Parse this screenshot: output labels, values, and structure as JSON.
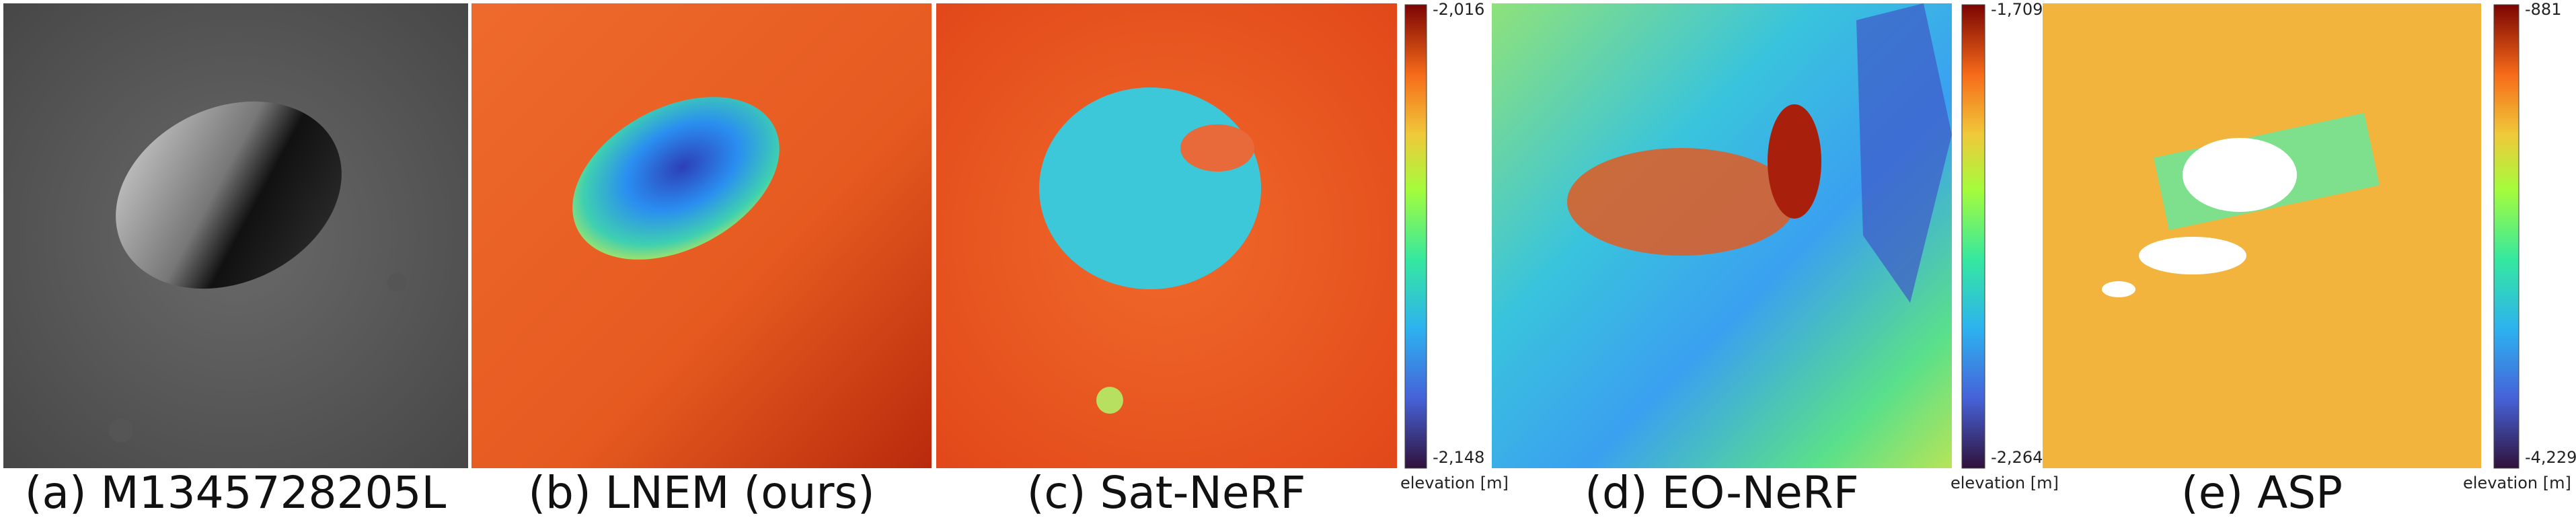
{
  "panels": [
    {
      "caption": "(a) M1345728205L"
    },
    {
      "caption": "(b) LNEM (ours)"
    },
    {
      "caption": "(c) Sat-NeRF",
      "colorbar": {
        "max": "-2,016",
        "min": "-2,148",
        "label": "elevation [m]"
      }
    },
    {
      "caption": "(d) EO-NeRF",
      "colorbar": {
        "max": "-1,709",
        "min": "-2,264",
        "label": "elevation [m]"
      }
    },
    {
      "caption": "(e) ASP",
      "colorbar": {
        "max": "-881",
        "min": "-4,229",
        "label": "elevation [m]"
      }
    }
  ]
}
